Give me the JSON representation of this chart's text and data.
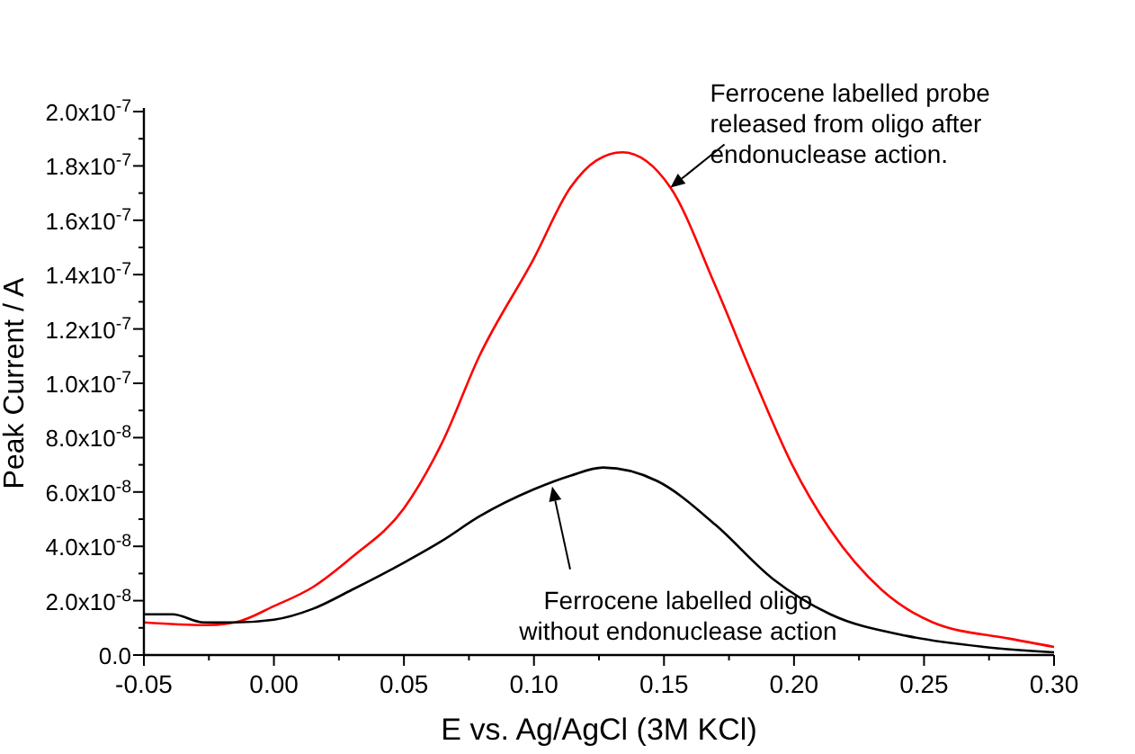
{
  "chart_data": {
    "type": "line",
    "xlabel": "E vs. Ag/AgCl (3M KCl)",
    "ylabel": "Peak Current / A",
    "xlim": [
      -0.05,
      0.3
    ],
    "xticks": [
      {
        "value": -0.05,
        "label": "-0.05"
      },
      {
        "value": 0,
        "label": "0.00"
      },
      {
        "value": 0.05,
        "label": "0.05"
      },
      {
        "value": 0.1,
        "label": "0.10"
      },
      {
        "value": 0.15,
        "label": "0.15"
      },
      {
        "value": 0.2,
        "label": "0.20"
      },
      {
        "value": 0.25,
        "label": "0.25"
      },
      {
        "value": 0.3,
        "label": "0.30"
      }
    ],
    "ylim": [
      0,
      2e-07
    ],
    "yticks": [
      {
        "value": 0,
        "label": "0.0"
      },
      {
        "value": 2e-08,
        "label": "2.0x10$^{-8}$"
      },
      {
        "value": 4e-08,
        "label": "4.0x10$^{-8}$"
      },
      {
        "value": 6e-08,
        "label": "6.0x10$^{-8}$"
      },
      {
        "value": 8e-08,
        "label": "8.0x10$^{-8}$"
      },
      {
        "value": 1e-07,
        "label": "1.0x10$^{-7}$"
      },
      {
        "value": 1.2e-07,
        "label": "1.2x10$^{-7}$"
      },
      {
        "value": 1.4e-07,
        "label": "1.4x10$^{-7}$"
      },
      {
        "value": 1.6e-07,
        "label": "1.6x10$^{-7}$"
      },
      {
        "value": 1.8e-07,
        "label": "1.8x10$^{-7}$"
      },
      {
        "value": 2e-07,
        "label": "2.0x10$^{-7}$"
      }
    ],
    "grid": false,
    "marker": "none",
    "line_style": "solid",
    "series": [
      {
        "color": "#ff0000",
        "x": [
          -0.05,
          -0.027,
          -0.015,
          0,
          0.015,
          0.03,
          0.05,
          0.0646,
          0.079,
          0.1,
          0.114,
          0.124,
          0.134,
          0.1525,
          0.1697,
          0.1845,
          0.1993,
          0.214,
          0.2337,
          0.2534,
          0.283,
          0.3
        ],
        "values": [
          1.2e-08,
          1.1e-08,
          1.2e-08,
          1.8e-08,
          2.5e-08,
          3.6e-08,
          5.4e-08,
          7.8e-08,
          1.1e-07,
          1.46e-07,
          1.72e-07,
          1.82e-07,
          1.85e-07,
          1.72e-07,
          1.36e-07,
          1.02e-07,
          7e-08,
          4.6e-08,
          2.4e-08,
          1.2e-08,
          6e-09,
          3e-09
        ]
      },
      {
        "color": "#000000",
        "x": [
          -0.05,
          -0.039,
          -0.027,
          -0.015,
          0,
          0.015,
          0.03,
          0.05,
          0.0646,
          0.079,
          0.1,
          0.114,
          0.1266,
          0.1475,
          0.1697,
          0.1919,
          0.214,
          0.2436,
          0.273,
          0.3
        ],
        "values": [
          1.5e-08,
          1.5e-08,
          1.2e-08,
          1.2e-08,
          1.3e-08,
          1.7e-08,
          2.4e-08,
          3.4e-08,
          4.2e-08,
          5.1e-08,
          6.1e-08,
          6.6e-08,
          6.9e-08,
          6.4e-08,
          4.8e-08,
          2.8e-08,
          1.5e-08,
          7e-09,
          3e-09,
          1e-09
        ]
      }
    ],
    "annotations": [
      {
        "text": "Ferrocene labelled probe\nreleased from oligo after\nendonuclease action.",
        "x": 0.1525,
        "y": 1.72e-07
      },
      {
        "text": "Ferrocene labelled oligo\nwithout endonuclease action",
        "x": 0.107,
        "y": 6.2e-08
      }
    ]
  }
}
